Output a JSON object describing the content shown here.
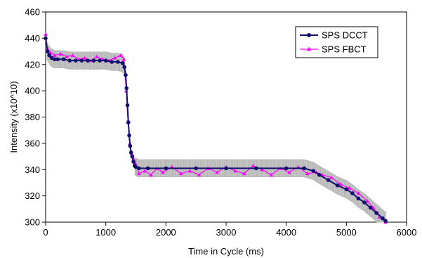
{
  "chart_data": {
    "type": "line",
    "xlabel": "Time in Cycle (ms)",
    "ylabel": "Intensity (x10^10)",
    "xlim": [
      0,
      6000
    ],
    "ylim": [
      300,
      460
    ],
    "xticks": [
      0,
      1000,
      2000,
      3000,
      4000,
      5000,
      6000
    ],
    "yticks": [
      300,
      320,
      340,
      360,
      380,
      400,
      420,
      440,
      460
    ],
    "grid": false,
    "legend_position": "top-right",
    "colors": {
      "dcct": "#10106e",
      "fbct": "#ff00ff",
      "error_bars": "#b8b8b8"
    },
    "series": [
      {
        "name": "SPS DCCT",
        "marker": "circle",
        "x": [
          0,
          30,
          60,
          100,
          150,
          200,
          300,
          400,
          500,
          600,
          700,
          800,
          900,
          1000,
          1100,
          1200,
          1280,
          1310,
          1330,
          1345,
          1360,
          1375,
          1390,
          1405,
          1420,
          1440,
          1460,
          1480,
          1500,
          1550,
          1700,
          2000,
          2500,
          3000,
          3500,
          4000,
          4300,
          4450,
          4550,
          4700,
          4850,
          5000,
          5100,
          5200,
          5300,
          5400,
          5500,
          5600,
          5650
        ],
        "values": [
          440,
          430,
          427,
          425,
          424,
          424,
          424,
          423,
          423,
          423,
          423,
          423,
          423,
          423,
          422,
          422,
          421,
          418,
          412,
          402,
          389,
          376,
          366,
          358,
          353,
          350,
          346,
          343,
          342,
          341,
          341,
          341,
          341,
          341,
          341,
          341,
          341,
          339,
          336,
          332,
          328,
          325,
          322,
          318,
          315,
          311,
          307,
          303,
          301
        ]
      },
      {
        "name": "SPS FBCT",
        "marker": "triangle",
        "x": [
          0,
          30,
          80,
          150,
          250,
          350,
          450,
          550,
          650,
          750,
          850,
          950,
          1050,
          1150,
          1250,
          1300,
          1340,
          1370,
          1400,
          1430,
          1460,
          1490,
          1550,
          1650,
          1750,
          1850,
          1950,
          2100,
          2250,
          2400,
          2550,
          2700,
          2850,
          3000,
          3150,
          3300,
          3450,
          3600,
          3750,
          3900,
          4050,
          4200,
          4350,
          4500,
          4600,
          4750,
          4900,
          5050,
          5200,
          5350,
          5450,
          5550,
          5650
        ],
        "values": [
          443,
          432,
          429,
          427,
          428,
          426,
          427,
          424,
          425,
          423,
          426,
          424,
          423,
          425,
          427,
          424,
          400,
          376,
          360,
          352,
          348,
          345,
          337,
          339,
          336,
          341,
          338,
          342,
          337,
          339,
          336,
          341,
          338,
          342,
          339,
          337,
          343,
          340,
          336,
          341,
          338,
          342,
          337,
          338,
          336,
          334,
          329,
          326,
          322,
          316,
          311,
          304,
          300
        ]
      }
    ]
  }
}
